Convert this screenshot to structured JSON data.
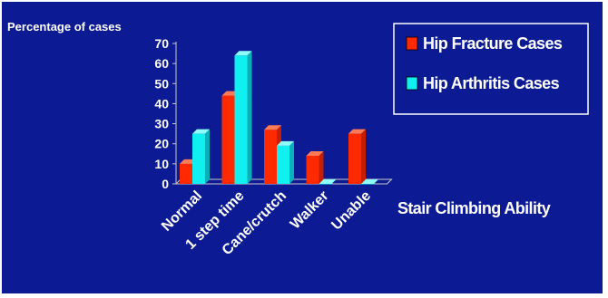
{
  "colors": {
    "background": "#0c1a93",
    "series_1_front": "#ff2a00",
    "series_1_side": "#c81e00",
    "series_1_top": "#ff7a55",
    "series_2_front": "#11f0f0",
    "series_2_side": "#0ab0b8",
    "series_2_top": "#8ffcfc",
    "axis": "#c8c8c8",
    "text": "#ffffff"
  },
  "chart_data": {
    "type": "bar",
    "title": "",
    "ylabel": "Percentage of cases",
    "xlabel": "Stair Climbing Ability",
    "categories": [
      "Normal",
      "1 step time",
      "Cane/crutch",
      "Walker",
      "Unable"
    ],
    "series": [
      {
        "name": "Hip Fracture Cases",
        "values": [
          10,
          44,
          27,
          14,
          25
        ]
      },
      {
        "name": "Hip Arthritis Cases",
        "values": [
          25,
          64,
          19,
          0,
          0
        ]
      }
    ],
    "ylim": [
      0,
      70
    ],
    "yticks": [
      0,
      10,
      20,
      30,
      40,
      50,
      60,
      70
    ],
    "grid": false,
    "legend_position": "top-right",
    "style": "3d-clustered"
  }
}
